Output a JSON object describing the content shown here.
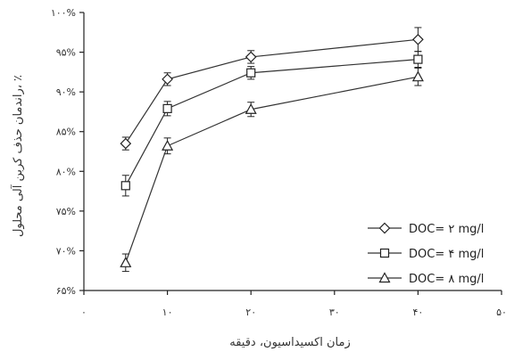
{
  "chart_data": {
    "type": "line",
    "title": "",
    "xlabel": "زمان اکسیداسیون، دقیقه",
    "ylabel": "راندمان حذف کربن آلی محلول، ٪",
    "xlim": [
      0,
      50
    ],
    "ylim": [
      65,
      100
    ],
    "x_ticks": [
      0,
      10,
      20,
      30,
      40,
      50
    ],
    "x_tick_labels": [
      "۰",
      "۱۰",
      "۲۰",
      "۳۰",
      "۴۰",
      "۵۰"
    ],
    "y_ticks": [
      65,
      70,
      75,
      80,
      85,
      90,
      95,
      100
    ],
    "y_tick_labels": [
      "۶۵%",
      "۷۰%",
      "۷۵%",
      "۸۰%",
      "۸۵%",
      "۹۰%",
      "۹۵%",
      "۱۰۰%"
    ],
    "legend_position": "bottom-right",
    "grid": false,
    "series": [
      {
        "name": "DOC= ۲ mg/l",
        "marker": "diamond",
        "x": [
          5,
          10,
          20,
          40
        ],
        "y": [
          83.5,
          91.6,
          94.4,
          96.6
        ],
        "err": [
          0.8,
          0.8,
          0.8,
          1.5
        ]
      },
      {
        "name": "DOC= ۴ mg/l",
        "marker": "square",
        "x": [
          5,
          10,
          20,
          40
        ],
        "y": [
          78.2,
          87.9,
          92.4,
          94.1
        ],
        "err": [
          1.3,
          0.9,
          0.8,
          1.0
        ]
      },
      {
        "name": "DOC= ۸ mg/l",
        "marker": "triangle",
        "x": [
          5,
          10,
          20,
          40
        ],
        "y": [
          68.5,
          83.2,
          87.8,
          91.9
        ],
        "err": [
          1.1,
          1.0,
          0.9,
          1.1
        ]
      }
    ]
  }
}
